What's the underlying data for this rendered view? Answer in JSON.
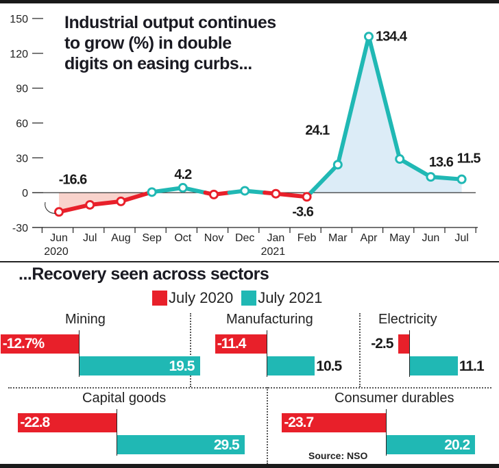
{
  "colors": {
    "negative": "#e8202a",
    "positive": "#20b8b4",
    "neg_fill": "#f9d3cc",
    "pos_fill": "#dcecf7"
  },
  "chart_data": [
    {
      "type": "line",
      "title": "Industrial output continues to grow (%) in double digits on easing curbs...",
      "title_lines": [
        "Industrial output continues",
        "to grow (%) in double",
        "digits on easing curbs..."
      ],
      "xlabel": "",
      "ylabel": "",
      "ylim": [
        -30,
        150
      ],
      "yticks": [
        150,
        120,
        90,
        60,
        30,
        0,
        -30
      ],
      "categories": [
        "Jun",
        "Jul",
        "Aug",
        "Sep",
        "Oct",
        "Nov",
        "Dec",
        "Jan",
        "Feb",
        "Mar",
        "Apr",
        "May",
        "Jun",
        "Jul"
      ],
      "year_labels": [
        {
          "index": 0,
          "label": "2020"
        },
        {
          "index": 7,
          "label": "2021"
        }
      ],
      "values": [
        -16.6,
        -10.5,
        -7.5,
        0.5,
        4.2,
        -1.6,
        1.6,
        -0.9,
        -3.6,
        24.1,
        134.4,
        29.0,
        13.6,
        11.5
      ],
      "data_labels": [
        {
          "index": 0,
          "text": "-16.6"
        },
        {
          "index": 4,
          "text": "4.2"
        },
        {
          "index": 8,
          "text": "-3.6"
        },
        {
          "index": 9,
          "text": "24.1"
        },
        {
          "index": 10,
          "text": "134.4"
        },
        {
          "index": 12,
          "text": "13.6"
        },
        {
          "index": 13,
          "text": "11.5"
        }
      ],
      "grid": false
    },
    {
      "type": "bar",
      "title": "...Recovery seen across sectors",
      "legend": [
        "July 2020",
        "July 2021"
      ],
      "legend_position": "top-right",
      "categories": [
        "Mining",
        "Manufacturing",
        "Electricity",
        "Capital goods",
        "Consumer durables"
      ],
      "series": [
        {
          "name": "July 2020",
          "values": [
            -12.7,
            -11.4,
            -2.5,
            -22.8,
            -23.7
          ],
          "labels": [
            "-12.7%",
            "-11.4",
            "-2.5",
            "-22.8",
            "-23.7"
          ]
        },
        {
          "name": "July 2021",
          "values": [
            19.5,
            10.5,
            11.1,
            29.5,
            20.2
          ],
          "labels": [
            "19.5",
            "10.5",
            "11.1",
            "29.5",
            "20.2"
          ]
        }
      ]
    }
  ],
  "source": "Source: NSO"
}
